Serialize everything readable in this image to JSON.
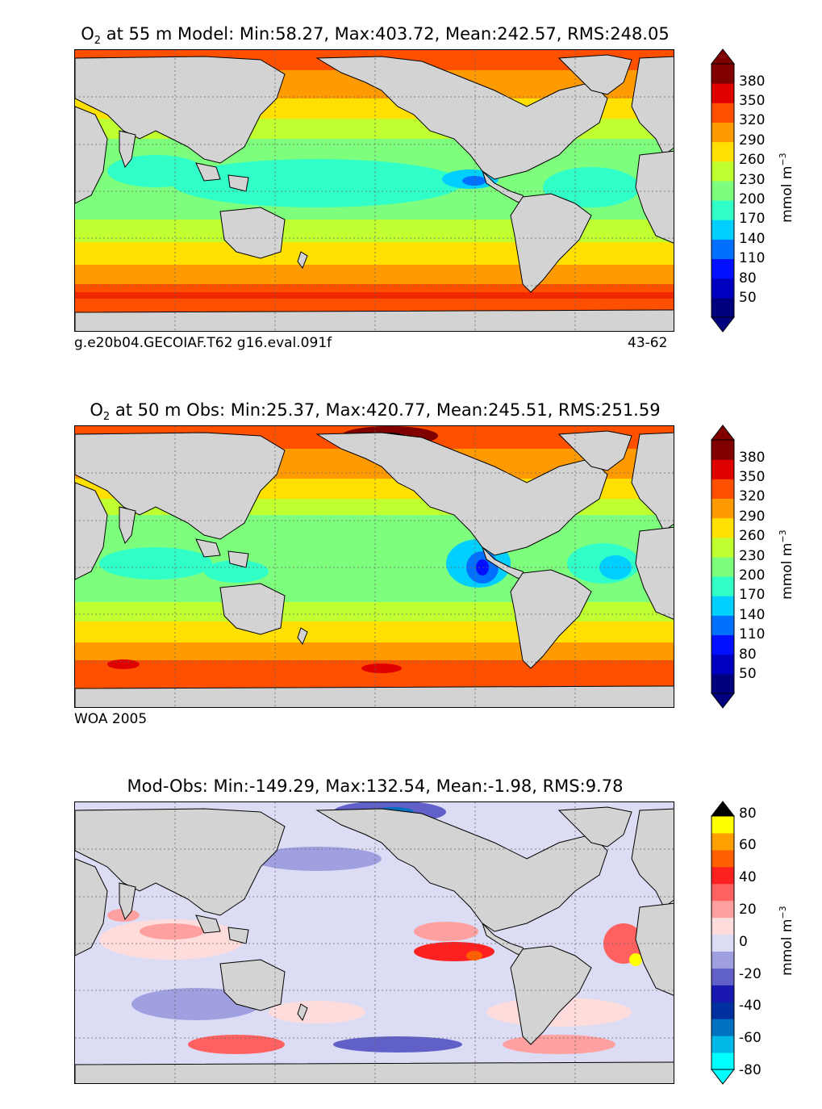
{
  "panels": [
    {
      "title_prefix": "O",
      "title_sub": "2",
      "title_rest": " at 55 m Model: Min:58.27, Max:403.72, Mean:242.57, RMS:248.05",
      "footer_left": "g.e20b04.GECOIAF.T62 g16.eval.091f",
      "footer_right": "43-62",
      "unit_main": "mmol m",
      "unit_sup": "−3",
      "ticks": [
        "50",
        "80",
        "110",
        "140",
        "170",
        "200",
        "230",
        "260",
        "290",
        "320",
        "350",
        "380"
      ]
    },
    {
      "title_prefix": "O",
      "title_sub": "2",
      "title_rest": " at 50 m Obs: Min:25.37, Max:420.77, Mean:245.51, RMS:251.59",
      "footer_left": "WOA 2005",
      "footer_right": "",
      "unit_main": "mmol m",
      "unit_sup": "−3",
      "ticks": [
        "50",
        "80",
        "110",
        "140",
        "170",
        "200",
        "230",
        "260",
        "290",
        "320",
        "350",
        "380"
      ]
    },
    {
      "title_prefix": "",
      "title_sub": "",
      "title_rest": "Mod-Obs: Min:-149.29, Max:132.54, Mean:-1.98, RMS:9.78",
      "footer_left": "",
      "footer_right": "",
      "unit_main": "mmol m",
      "unit_sup": "−3",
      "ticks": [
        "-80",
        "-60",
        "-40",
        "-20",
        "0",
        "20",
        "40",
        "60",
        "80"
      ]
    }
  ],
  "colors": {
    "land": "#d3d3d3",
    "oxygen_scale": [
      "#00007f",
      "#0000c0",
      "#0010ff",
      "#0070ff",
      "#00cfff",
      "#30ffc8",
      "#7dff7d",
      "#c0ff30",
      "#ffe000",
      "#ff9a00",
      "#ff5000",
      "#e00000",
      "#800000"
    ],
    "diff_scale": [
      "#00ffff",
      "#00b8e8",
      "#0070c0",
      "#0030a0",
      "#1818b0",
      "#6060c8",
      "#a0a0e0",
      "#dcdcf4",
      "#ffdcdc",
      "#ffa0a0",
      "#ff6060",
      "#ff2020",
      "#ff6000",
      "#ffa000",
      "#ffff00"
    ]
  }
}
